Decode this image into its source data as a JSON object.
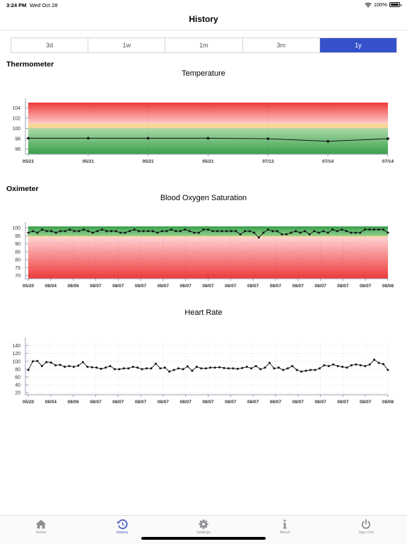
{
  "status": {
    "time": "3:24 PM",
    "date": "Wed Oct 28",
    "battery": "100%"
  },
  "page_title": "History",
  "range_tabs": [
    {
      "label": "3d",
      "active": false
    },
    {
      "label": "1w",
      "active": false
    },
    {
      "label": "1m",
      "active": false
    },
    {
      "label": "3m",
      "active": false
    },
    {
      "label": "1y",
      "active": true
    }
  ],
  "sections": {
    "thermometer": "Thermometer",
    "oximeter": "Oximeter"
  },
  "chart_data": [
    {
      "type": "line",
      "title": "Temperature",
      "ylim": [
        95,
        105
      ],
      "yticks": [
        96,
        98,
        100,
        102,
        104
      ],
      "x_labels": [
        "05/21",
        "05/21",
        "05/21",
        "05/21",
        "07/13",
        "07/14",
        "07/14"
      ],
      "values": [
        98.1,
        98.1,
        98.1,
        98.1,
        98.0,
        97.5,
        98.0
      ],
      "bands": [
        {
          "from": 95,
          "to": 100,
          "color": "#4caf50"
        },
        {
          "from": 100,
          "to": 101,
          "color": "#f7d79a"
        },
        {
          "from": 101,
          "to": 105,
          "color": "#f44336"
        }
      ],
      "grid": true
    },
    {
      "type": "line",
      "title": "Blood Oxygen Saturation",
      "ylim": [
        68,
        101
      ],
      "yticks": [
        70,
        75,
        80,
        85,
        90,
        95,
        100
      ],
      "x_labels": [
        "05/20",
        "08/04",
        "08/06",
        "08/07",
        "08/07",
        "08/07",
        "08/07",
        "08/07",
        "08/07",
        "08/07",
        "08/07",
        "08/07",
        "08/07",
        "08/07",
        "08/07",
        "08/07",
        "08/08"
      ],
      "values": [
        97,
        98,
        97,
        99,
        98,
        98,
        97,
        98,
        98,
        99,
        98,
        98,
        99,
        98,
        97,
        98,
        99,
        98,
        98,
        98,
        97,
        97,
        98,
        99,
        98,
        98,
        98,
        98,
        97,
        98,
        98,
        99,
        98,
        98,
        99,
        98,
        97,
        97,
        99,
        99,
        98,
        98,
        98,
        98,
        98,
        98,
        96,
        98,
        98,
        97,
        94,
        97,
        99,
        98,
        98,
        96,
        96,
        97,
        98,
        97,
        98,
        96,
        98,
        97,
        98,
        97,
        99,
        98,
        99,
        98,
        97,
        97,
        97,
        99,
        99,
        99,
        99,
        99,
        97
      ],
      "bands": [
        {
          "from": 68,
          "to": 94,
          "color": "#f44336"
        },
        {
          "from": 94,
          "to": 95,
          "color": "#f7d79a"
        },
        {
          "from": 95,
          "to": 101,
          "color": "#4caf50"
        }
      ],
      "grid": true
    },
    {
      "type": "line",
      "title": "Heart Rate",
      "ylim": [
        15,
        150
      ],
      "yticks": [
        20,
        40,
        60,
        80,
        100,
        120,
        140
      ],
      "x_labels": [
        "05/20",
        "08/04",
        "08/06",
        "08/07",
        "08/07",
        "08/07",
        "08/07",
        "08/07",
        "08/07",
        "08/07",
        "08/07",
        "08/07",
        "08/07",
        "08/07",
        "08/07",
        "08/07",
        "08/08"
      ],
      "values": [
        78,
        100,
        101,
        88,
        98,
        97,
        90,
        91,
        86,
        88,
        86,
        89,
        98,
        86,
        85,
        84,
        81,
        84,
        88,
        80,
        80,
        82,
        82,
        86,
        84,
        80,
        82,
        82,
        94,
        82,
        84,
        74,
        78,
        82,
        80,
        87,
        76,
        86,
        82,
        82,
        84,
        84,
        85,
        83,
        82,
        82,
        81,
        83,
        86,
        82,
        88,
        80,
        84,
        96,
        82,
        84,
        78,
        82,
        88,
        78,
        74,
        76,
        78,
        78,
        82,
        90,
        88,
        92,
        88,
        86,
        84,
        90,
        92,
        90,
        88,
        92,
        104,
        96,
        93,
        78
      ],
      "grid": true
    }
  ],
  "tabbar": [
    {
      "label": "Home",
      "icon": "home-icon",
      "active": false
    },
    {
      "label": "History",
      "icon": "history-icon",
      "active": true
    },
    {
      "label": "Settings",
      "icon": "gear-icon",
      "active": false
    },
    {
      "label": "About",
      "icon": "info-icon",
      "active": false
    },
    {
      "label": "Sign Out",
      "icon": "power-icon",
      "active": false
    }
  ]
}
